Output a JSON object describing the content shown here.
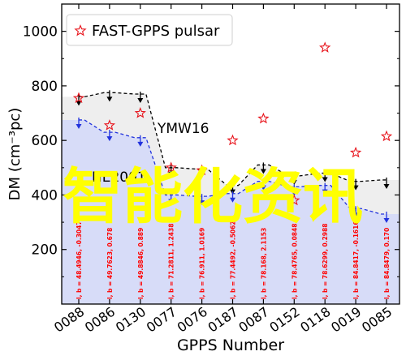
{
  "chart_data": {
    "type": "scatter",
    "xlabel": "GPPS Number",
    "ylabel": "DM (cm⁻³pc)",
    "ylim": [
      0,
      1100
    ],
    "yticks": [
      200,
      400,
      600,
      800,
      1000
    ],
    "grid": false,
    "legend": {
      "placement": "top-left",
      "entries": [
        "FAST-GPPS pulsar"
      ]
    },
    "categories": [
      "0088",
      "0086",
      "0130",
      "0077",
      "0076",
      "0187",
      "0087",
      "0152",
      "0118",
      "0019",
      "0085"
    ],
    "series": [
      {
        "name": "FAST-GPPS pulsar",
        "marker": "star",
        "color": "#e8141c",
        "values": [
          755,
          655,
          700,
          500,
          490,
          600,
          680,
          380,
          940,
          555,
          615
        ]
      }
    ],
    "model_upper": {
      "name": "YMW16",
      "values": [
        760,
        775,
        770,
        500,
        495,
        435,
        510,
        470,
        480,
        450,
        455
      ]
    },
    "model_lower": {
      "name": "NE2001",
      "values": [
        675,
        630,
        610,
        400,
        395,
        405,
        450,
        430,
        435,
        350,
        330
      ]
    },
    "annotations": [
      {
        "text": "YMW16",
        "x_index": 3.4,
        "y": 680
      },
      {
        "text": "NE2001",
        "x_index": 1.7,
        "y": 490
      }
    ],
    "position_labels": [
      "l, b = 48.4946, -0.3047",
      "l, b = 49.7623, 0.678",
      "l, b = 49.8846, 0.889",
      "l, b = 71.2811, 1.2438",
      "l, b = 76.911, 1.0169",
      "l, b = 77.4492, -0.5062",
      "l, b = 78.168, 2.1153",
      "l, b = 78.4765, 0.0848",
      "l, b = 78.6299, 0.2988",
      "l, b = 84.8417, -0.1616",
      "l, b = 84.8479, 0.170"
    ],
    "colors": {
      "ymw16_fill": "#eeeeee",
      "ne2001_fill": "#d7dcf8",
      "ne2001_line": "#2233dd",
      "ymw16_line": "#000000",
      "star": "#e8141c",
      "label_text": "#ff0000"
    }
  },
  "watermark": "智能化资讯"
}
